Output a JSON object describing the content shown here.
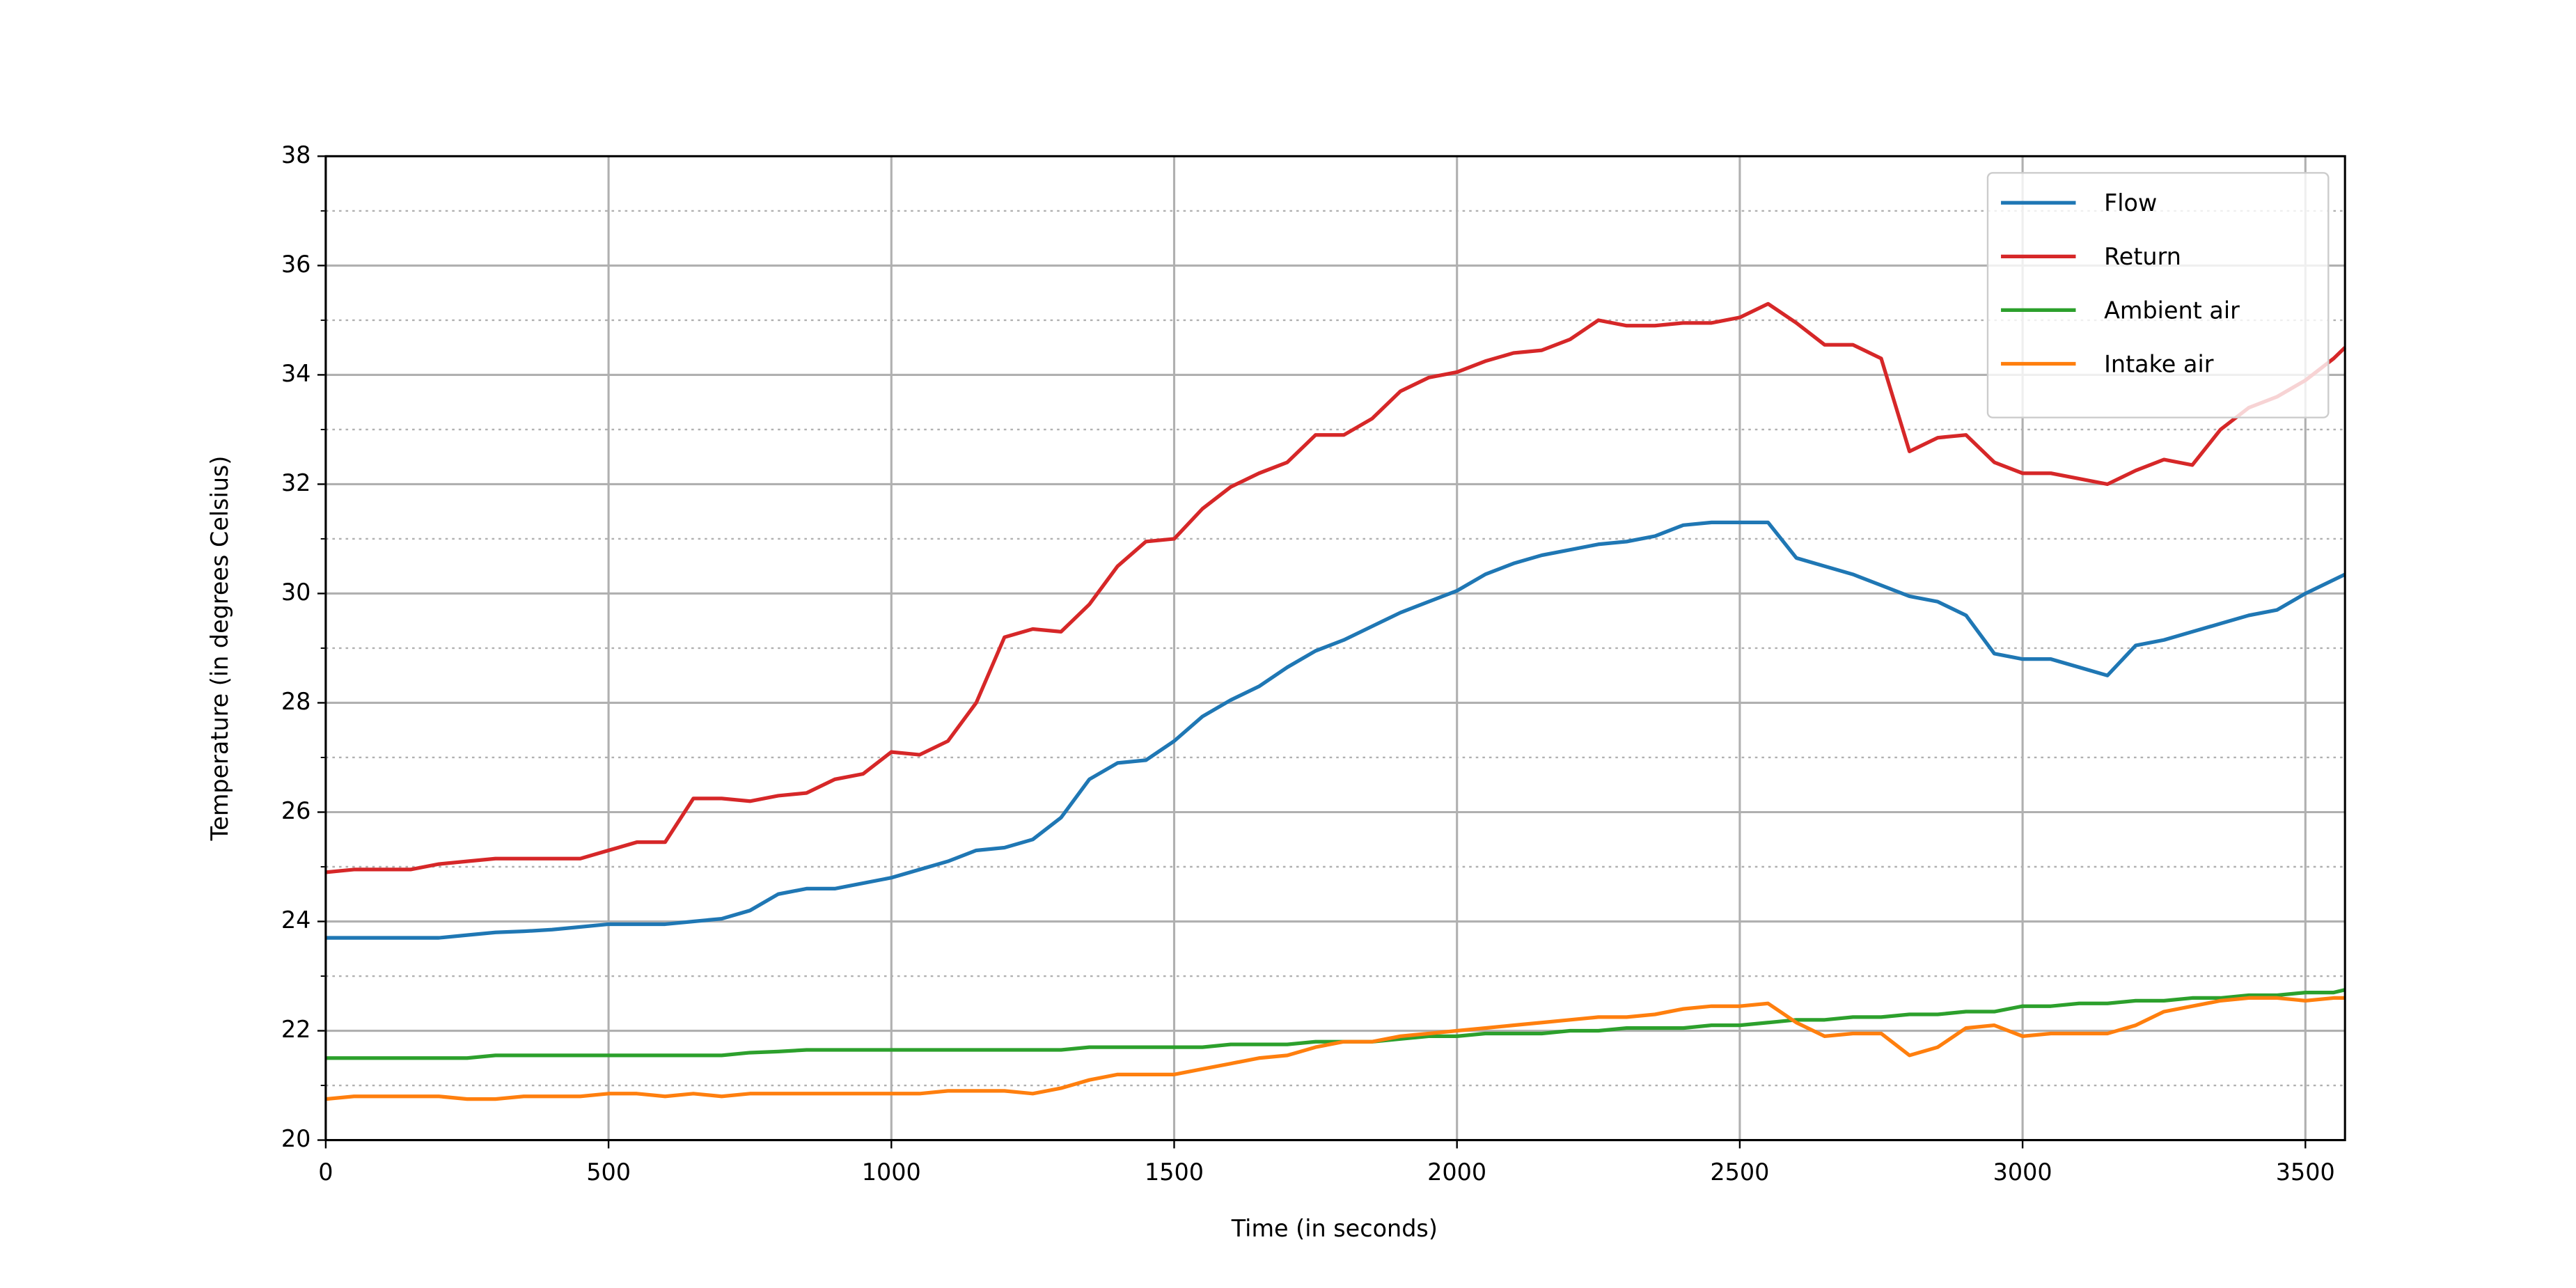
{
  "chart_data": {
    "type": "line",
    "x_label": "Time (in seconds)",
    "y_label": "Temperature (in degrees Celsius)",
    "xlim": [
      0,
      3570
    ],
    "ylim": [
      20,
      38
    ],
    "xticks": [
      0,
      500,
      1000,
      1500,
      2000,
      2500,
      3000,
      3500
    ],
    "yticks": [
      20,
      22,
      24,
      26,
      28,
      30,
      32,
      34,
      36,
      38
    ],
    "yticks_minor": [
      21,
      23,
      25,
      27,
      29,
      31,
      33,
      35,
      37
    ],
    "grid": true,
    "legend": "upper right",
    "x": [
      0,
      50,
      100,
      150,
      200,
      250,
      300,
      350,
      400,
      450,
      500,
      550,
      600,
      650,
      700,
      750,
      800,
      850,
      900,
      950,
      1000,
      1050,
      1100,
      1150,
      1200,
      1250,
      1300,
      1350,
      1400,
      1450,
      1500,
      1550,
      1600,
      1650,
      1700,
      1750,
      1800,
      1850,
      1900,
      1950,
      2000,
      2050,
      2100,
      2150,
      2200,
      2250,
      2300,
      2350,
      2400,
      2450,
      2500,
      2550,
      2600,
      2650,
      2700,
      2750,
      2800,
      2850,
      2900,
      2950,
      3000,
      3050,
      3100,
      3150,
      3200,
      3250,
      3300,
      3350,
      3400,
      3450,
      3500,
      3550,
      3570
    ],
    "series": [
      {
        "name": "Flow",
        "color": "#1f77b4",
        "values": [
          23.7,
          23.7,
          23.7,
          23.7,
          23.7,
          23.75,
          23.8,
          23.82,
          23.85,
          23.9,
          23.95,
          23.95,
          23.95,
          24.0,
          24.05,
          24.2,
          24.5,
          24.6,
          24.6,
          24.7,
          24.8,
          24.95,
          25.1,
          25.3,
          25.35,
          25.5,
          25.9,
          26.6,
          26.9,
          26.95,
          27.3,
          27.75,
          28.05,
          28.3,
          28.65,
          28.95,
          29.15,
          29.4,
          29.65,
          29.85,
          30.05,
          30.35,
          30.55,
          30.7,
          30.8,
          30.9,
          30.95,
          31.05,
          31.25,
          31.3,
          31.3,
          31.3,
          30.65,
          30.5,
          30.35,
          30.15,
          29.95,
          29.85,
          29.6,
          28.9,
          28.8,
          28.8,
          28.65,
          28.5,
          29.05,
          29.15,
          29.3,
          29.45,
          29.6,
          29.7,
          30.0,
          30.25,
          30.35
        ]
      },
      {
        "name": "Return",
        "color": "#d62728",
        "values": [
          24.9,
          24.95,
          24.95,
          24.95,
          25.05,
          25.1,
          25.15,
          25.15,
          25.15,
          25.15,
          25.3,
          25.45,
          25.45,
          26.25,
          26.25,
          26.2,
          26.3,
          26.35,
          26.6,
          26.7,
          27.1,
          27.05,
          27.3,
          28.0,
          29.2,
          29.35,
          29.3,
          29.8,
          30.5,
          30.95,
          31.0,
          31.55,
          31.95,
          32.2,
          32.4,
          32.9,
          32.9,
          33.2,
          33.7,
          33.95,
          34.05,
          34.25,
          34.4,
          34.45,
          34.65,
          35.0,
          34.9,
          34.9,
          34.95,
          34.95,
          35.05,
          35.3,
          34.95,
          34.55,
          34.55,
          34.3,
          32.6,
          32.85,
          32.9,
          32.4,
          32.2,
          32.2,
          32.1,
          32.0,
          32.25,
          32.45,
          32.35,
          33.0,
          33.4,
          33.6,
          33.9,
          34.3,
          34.5
        ]
      },
      {
        "name": "Ambient air",
        "color": "#2ca02c",
        "values": [
          21.5,
          21.5,
          21.5,
          21.5,
          21.5,
          21.5,
          21.55,
          21.55,
          21.55,
          21.55,
          21.55,
          21.55,
          21.55,
          21.55,
          21.55,
          21.6,
          21.62,
          21.65,
          21.65,
          21.65,
          21.65,
          21.65,
          21.65,
          21.65,
          21.65,
          21.65,
          21.65,
          21.7,
          21.7,
          21.7,
          21.7,
          21.7,
          21.75,
          21.75,
          21.75,
          21.8,
          21.8,
          21.8,
          21.85,
          21.9,
          21.9,
          21.95,
          21.95,
          21.95,
          22.0,
          22.0,
          22.05,
          22.05,
          22.05,
          22.1,
          22.1,
          22.15,
          22.2,
          22.2,
          22.25,
          22.25,
          22.3,
          22.3,
          22.35,
          22.35,
          22.45,
          22.45,
          22.5,
          22.5,
          22.55,
          22.55,
          22.6,
          22.6,
          22.65,
          22.65,
          22.7,
          22.7,
          22.75
        ]
      },
      {
        "name": "Intake air",
        "color": "#ff7f0e",
        "values": [
          20.75,
          20.8,
          20.8,
          20.8,
          20.8,
          20.75,
          20.75,
          20.8,
          20.8,
          20.8,
          20.85,
          20.85,
          20.8,
          20.85,
          20.8,
          20.85,
          20.85,
          20.85,
          20.85,
          20.85,
          20.85,
          20.85,
          20.9,
          20.9,
          20.9,
          20.85,
          20.95,
          21.1,
          21.2,
          21.2,
          21.2,
          21.3,
          21.4,
          21.5,
          21.55,
          21.7,
          21.8,
          21.8,
          21.9,
          21.95,
          22.0,
          22.05,
          22.1,
          22.15,
          22.2,
          22.25,
          22.25,
          22.3,
          22.4,
          22.45,
          22.45,
          22.5,
          22.15,
          21.9,
          21.95,
          21.95,
          21.55,
          21.7,
          22.05,
          22.1,
          21.9,
          21.95,
          21.95,
          21.95,
          22.1,
          22.35,
          22.45,
          22.55,
          22.6,
          22.6,
          22.55,
          22.6,
          22.6
        ]
      }
    ]
  }
}
